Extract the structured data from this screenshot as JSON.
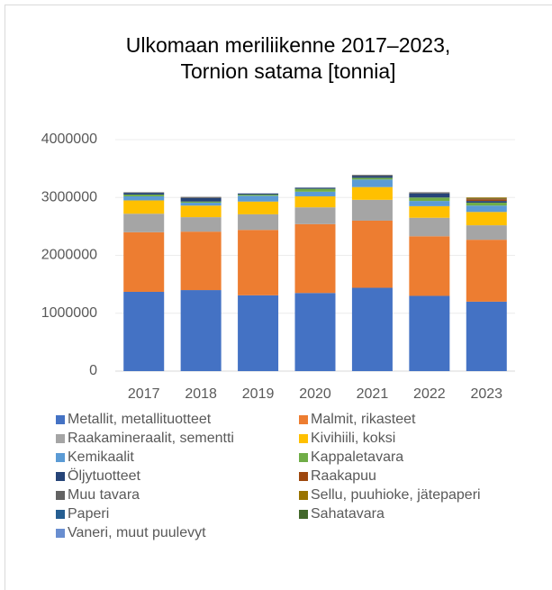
{
  "chart_data": {
    "type": "stacked_bar",
    "title": "Ulkomaan meriliikenne 2017–2023, Tornion satama [tonnia]",
    "categories": [
      "2017",
      "2018",
      "2019",
      "2020",
      "2021",
      "2022",
      "2023"
    ],
    "ylim": [
      0,
      4000000
    ],
    "yticks": [
      0,
      1000000,
      2000000,
      3000000,
      4000000
    ],
    "grid": true,
    "series": [
      {
        "name": "Metallit, metallituotteet",
        "color": "#4472c4",
        "values": [
          1370000,
          1400000,
          1310000,
          1350000,
          1440000,
          1300000,
          1200000
        ]
      },
      {
        "name": "Malmit, rikasteet",
        "color": "#ed7d31",
        "values": [
          1030000,
          1010000,
          1130000,
          1190000,
          1160000,
          1030000,
          1070000
        ]
      },
      {
        "name": "Raakamineraalit, sementti",
        "color": "#a5a5a5",
        "values": [
          320000,
          250000,
          270000,
          290000,
          360000,
          320000,
          250000
        ]
      },
      {
        "name": "Kivihiili, koksi",
        "color": "#ffc000",
        "values": [
          230000,
          200000,
          220000,
          190000,
          220000,
          200000,
          230000
        ]
      },
      {
        "name": "Kemikaalit",
        "color": "#5b9bd5",
        "values": [
          70000,
          50000,
          100000,
          80000,
          130000,
          90000,
          110000
        ]
      },
      {
        "name": "Kappaletavara",
        "color": "#70ad47",
        "values": [
          30000,
          20000,
          20000,
          50000,
          30000,
          60000,
          50000
        ]
      },
      {
        "name": "Öljytuotteet",
        "color": "#264478",
        "values": [
          30000,
          60000,
          20000,
          20000,
          30000,
          70000,
          30000
        ]
      },
      {
        "name": "Raakapuu",
        "color": "#9e480e",
        "values": [
          0,
          0,
          0,
          0,
          0,
          0,
          30000
        ]
      },
      {
        "name": "Muu tavara",
        "color": "#636363",
        "values": [
          10000,
          20000,
          0,
          0,
          20000,
          20000,
          10000
        ]
      },
      {
        "name": "Sellu, puuhioke, jätepaperi",
        "color": "#997300",
        "values": [
          0,
          0,
          0,
          0,
          0,
          0,
          20000
        ]
      },
      {
        "name": "Paperi",
        "color": "#255e91",
        "values": [
          0,
          0,
          0,
          0,
          0,
          0,
          0
        ]
      },
      {
        "name": "Sahatavara",
        "color": "#43682b",
        "values": [
          0,
          0,
          0,
          0,
          0,
          0,
          0
        ]
      },
      {
        "name": "Vaneri, muut puulevyt",
        "color": "#698ed0",
        "values": [
          0,
          0,
          0,
          0,
          0,
          0,
          0
        ]
      }
    ]
  }
}
